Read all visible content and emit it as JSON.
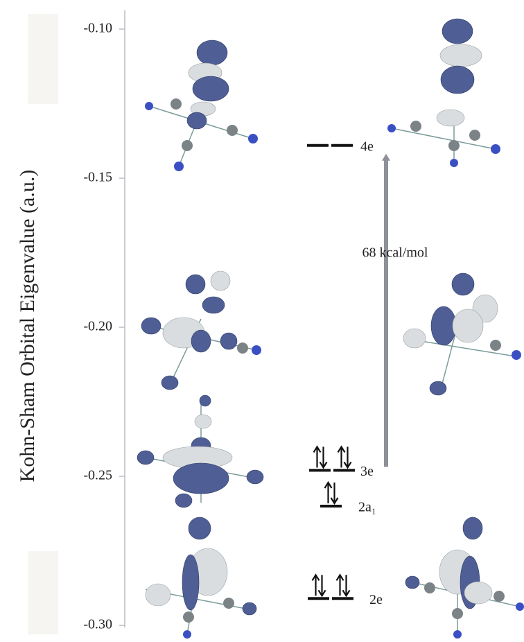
{
  "chart_data": {
    "type": "levels",
    "y_label": "Kohn-Sham Orbital Eigenvalue (a.u.)",
    "ylim": [
      -0.1,
      -0.3
    ],
    "yticks": [
      {
        "value": -0.1,
        "label": "-0.10"
      },
      {
        "value": -0.15,
        "label": "-0.15"
      },
      {
        "value": -0.2,
        "label": "-0.20"
      },
      {
        "value": -0.25,
        "label": "-0.25"
      },
      {
        "value": -0.3,
        "label": "-0.30"
      }
    ],
    "levels": [
      {
        "name": "4e",
        "value": -0.139,
        "degenerate": true,
        "occupied": false
      },
      {
        "name": "3e",
        "value": -0.248,
        "degenerate": true,
        "occupied": true
      },
      {
        "name": "2a₁",
        "value": -0.26,
        "degenerate": false,
        "occupied": true
      },
      {
        "name": "2e",
        "value": -0.291,
        "degenerate": true,
        "occupied": true
      }
    ],
    "annotation": "68 kcal/mol",
    "color": "#111111",
    "arrow_color": "#8e9197"
  }
}
